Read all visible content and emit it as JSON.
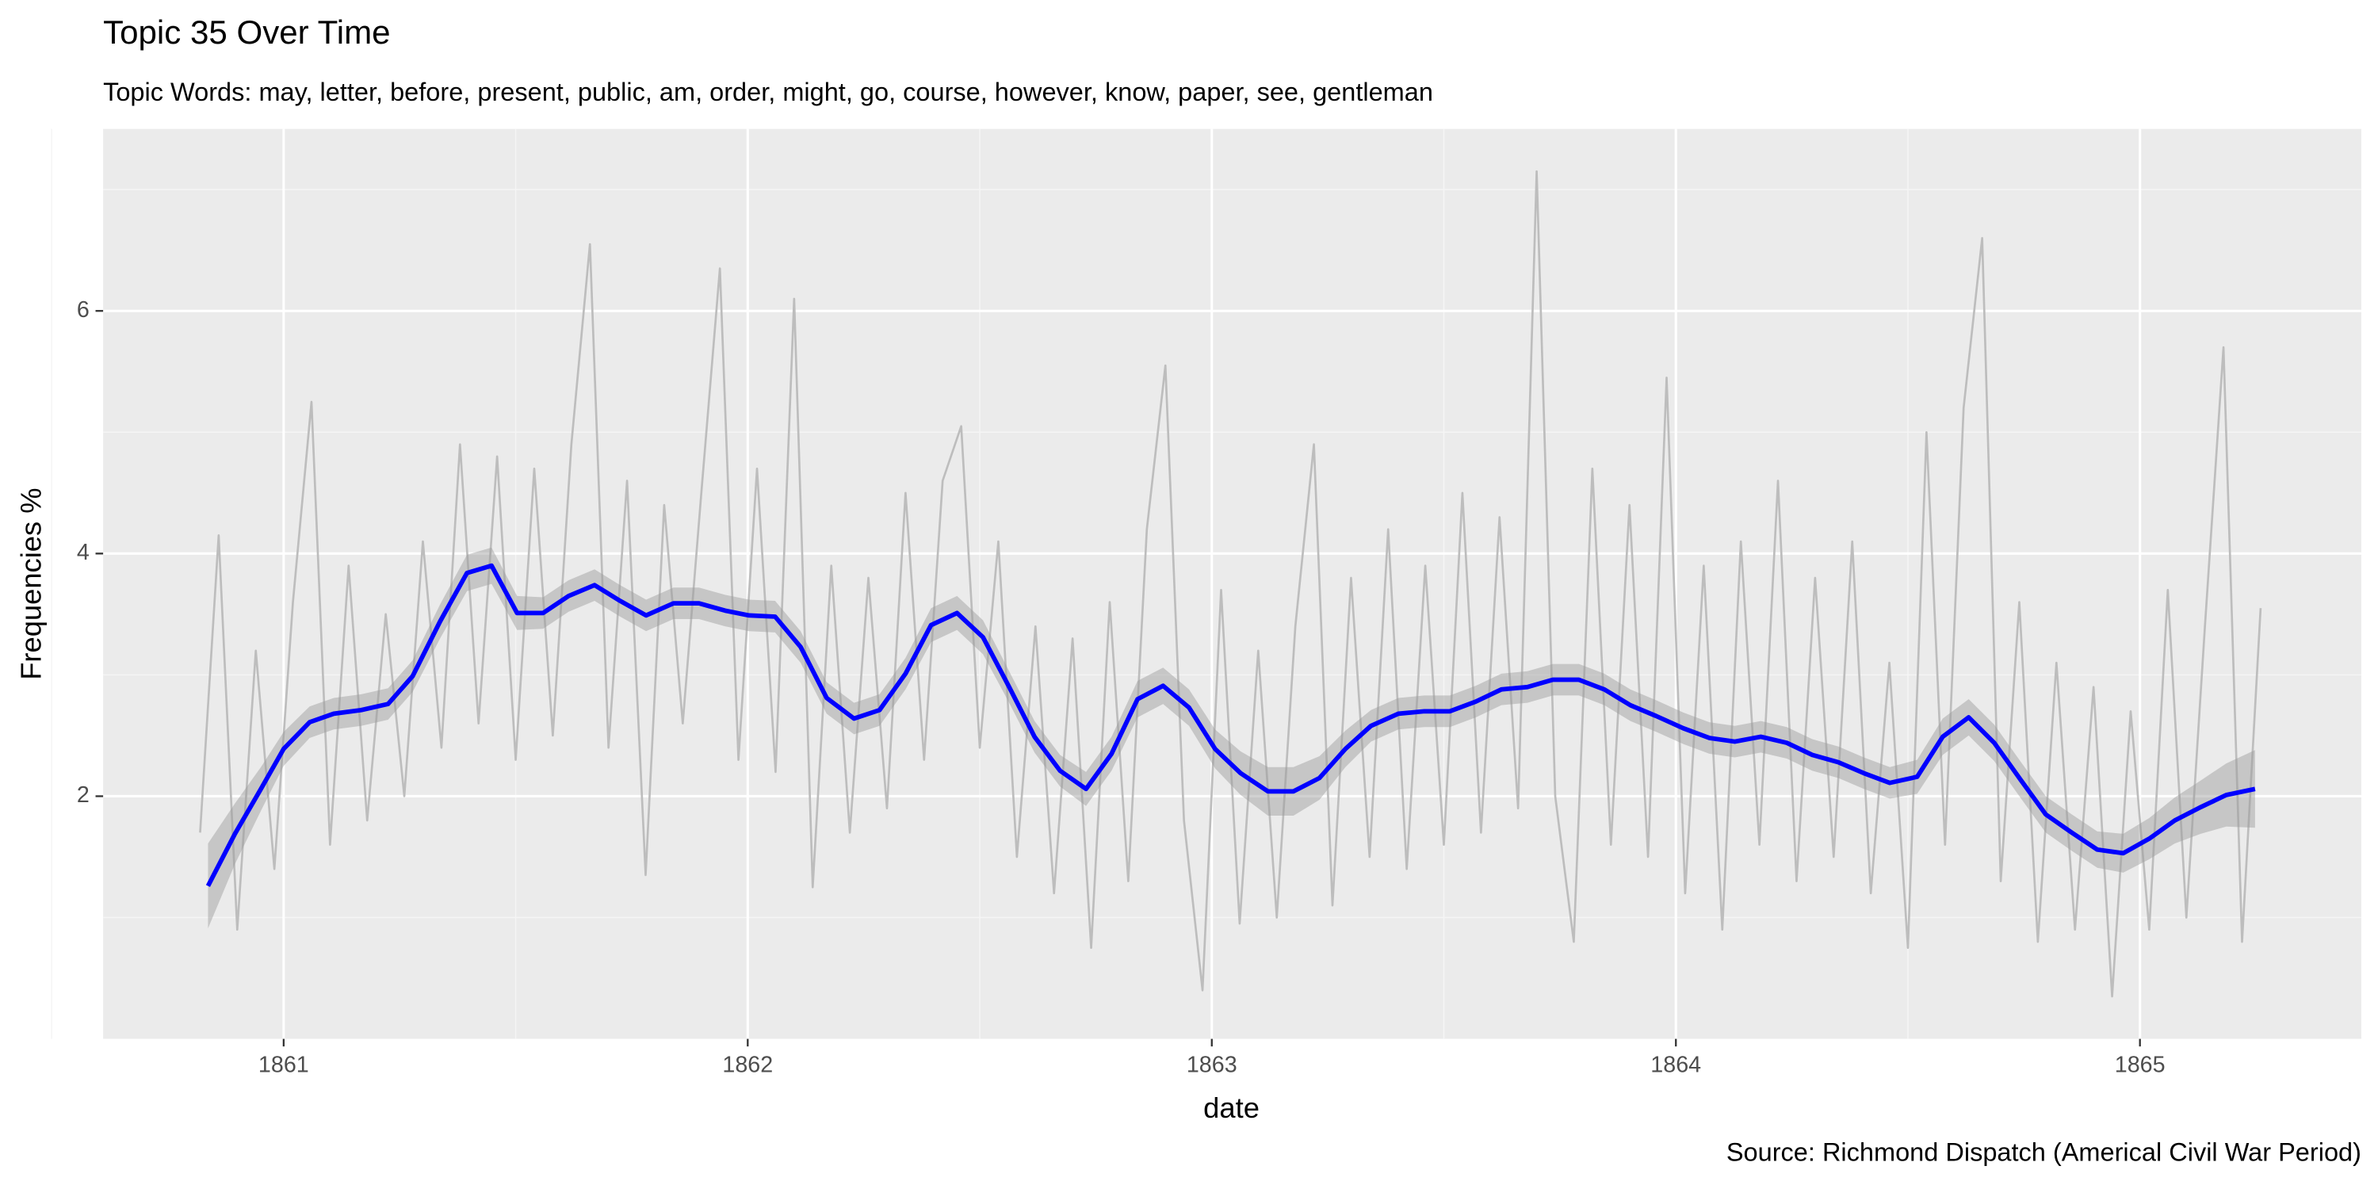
{
  "chart_data": {
    "type": "line",
    "title": "Topic 35 Over Time",
    "subtitle": "Topic Words: may, letter, before, present, public, am, order, might, go, course, however, know, paper, see, gentleman",
    "caption": "Source: Richmond Dispatch (Americal Civil War Period)",
    "x_label": "date",
    "y_label": "Frequencies %",
    "xlim": [
      1860.611,
      1865.477
    ],
    "xticks": [
      1861,
      1862,
      1863,
      1864,
      1865
    ],
    "x_minor_grid": [
      1860.5,
      1861.5,
      1862.5,
      1863.5,
      1864.5
    ],
    "ylim": [
      0,
      7.5
    ],
    "yticks": [
      2,
      4,
      6
    ],
    "y_minor_grid": [
      1,
      3,
      5,
      7
    ],
    "grid": true,
    "series": [
      {
        "color": "#bdbdbd",
        "x": [
          1860.82,
          1860.86,
          1860.9,
          1860.94,
          1860.98,
          1861.02,
          1861.06,
          1861.1,
          1861.14,
          1861.18,
          1861.22,
          1861.26,
          1861.3,
          1861.34,
          1861.38,
          1861.42,
          1861.46,
          1861.5,
          1861.54,
          1861.58,
          1861.62,
          1861.66,
          1861.7,
          1861.74,
          1861.78,
          1861.82,
          1861.86,
          1861.9,
          1861.94,
          1861.98,
          1862.02,
          1862.06,
          1862.1,
          1862.14,
          1862.18,
          1862.22,
          1862.26,
          1862.3,
          1862.34,
          1862.38,
          1862.42,
          1862.46,
          1862.5,
          1862.54,
          1862.58,
          1862.62,
          1862.66,
          1862.7,
          1862.74,
          1862.78,
          1862.82,
          1862.86,
          1862.9,
          1862.94,
          1862.98,
          1863.02,
          1863.06,
          1863.1,
          1863.14,
          1863.18,
          1863.22,
          1863.26,
          1863.3,
          1863.34,
          1863.38,
          1863.42,
          1863.46,
          1863.5,
          1863.54,
          1863.58,
          1863.62,
          1863.66,
          1863.7,
          1863.74,
          1863.78,
          1863.82,
          1863.86,
          1863.9,
          1863.94,
          1863.98,
          1864.02,
          1864.06,
          1864.1,
          1864.14,
          1864.18,
          1864.22,
          1864.26,
          1864.3,
          1864.34,
          1864.38,
          1864.42,
          1864.46,
          1864.5,
          1864.54,
          1864.58,
          1864.62,
          1864.66,
          1864.7,
          1864.74,
          1864.78,
          1864.82,
          1864.86,
          1864.9,
          1864.94,
          1864.98,
          1865.02,
          1865.06,
          1865.1,
          1865.14,
          1865.18,
          1865.22,
          1865.26
        ],
        "values": [
          1.7,
          4.15,
          0.9,
          3.2,
          1.4,
          3.6,
          5.25,
          1.6,
          3.9,
          1.8,
          3.5,
          2.0,
          4.1,
          2.4,
          4.9,
          2.6,
          4.8,
          2.3,
          4.7,
          2.5,
          4.9,
          6.55,
          2.4,
          4.6,
          1.35,
          4.4,
          2.6,
          4.5,
          6.35,
          2.3,
          4.7,
          2.2,
          6.1,
          1.25,
          3.9,
          1.7,
          3.8,
          1.9,
          4.5,
          2.3,
          4.6,
          5.05,
          2.4,
          4.1,
          1.5,
          3.4,
          1.2,
          3.3,
          0.75,
          3.6,
          1.3,
          4.2,
          5.55,
          1.8,
          0.4,
          3.7,
          0.95,
          3.2,
          1.0,
          3.4,
          4.9,
          1.1,
          3.8,
          1.5,
          4.2,
          1.4,
          3.9,
          1.6,
          4.5,
          1.7,
          4.3,
          1.9,
          7.15,
          2.0,
          0.8,
          4.7,
          1.6,
          4.4,
          1.5,
          5.45,
          1.2,
          3.9,
          0.9,
          4.1,
          1.6,
          4.6,
          1.3,
          3.8,
          1.5,
          4.1,
          1.2,
          3.1,
          0.75,
          5.0,
          1.6,
          5.2,
          6.6,
          1.3,
          3.6,
          0.8,
          3.1,
          0.9,
          2.9,
          0.35,
          2.7,
          0.9,
          3.7,
          1.0,
          3.4,
          5.7,
          0.8,
          3.55
        ]
      },
      {
        "color": "#0000ff",
        "band_color": "#999999",
        "x": [
          1860.837,
          1860.895,
          1860.951,
          1861.0,
          1861.056,
          1861.108,
          1861.167,
          1861.225,
          1861.278,
          1861.337,
          1861.395,
          1861.448,
          1861.503,
          1861.559,
          1861.614,
          1861.67,
          1861.725,
          1861.781,
          1861.84,
          1861.895,
          1861.951,
          1862.003,
          1862.059,
          1862.114,
          1862.17,
          1862.229,
          1862.284,
          1862.34,
          1862.395,
          1862.451,
          1862.507,
          1862.562,
          1862.618,
          1862.673,
          1862.729,
          1862.784,
          1862.84,
          1862.895,
          1862.951,
          1863.007,
          1863.062,
          1863.121,
          1863.176,
          1863.232,
          1863.288,
          1863.343,
          1863.402,
          1863.458,
          1863.513,
          1863.569,
          1863.624,
          1863.68,
          1863.735,
          1863.791,
          1863.846,
          1863.902,
          1863.958,
          1864.016,
          1864.072,
          1864.127,
          1864.183,
          1864.239,
          1864.294,
          1864.35,
          1864.405,
          1864.461,
          1864.52,
          1864.575,
          1864.631,
          1864.686,
          1864.742,
          1864.797,
          1864.853,
          1864.908,
          1864.964,
          1865.02,
          1865.075,
          1865.131,
          1865.186,
          1865.248
        ],
        "values": [
          1.26,
          1.69,
          2.06,
          2.39,
          2.61,
          2.68,
          2.71,
          2.76,
          2.99,
          3.44,
          3.84,
          3.9,
          3.51,
          3.51,
          3.65,
          3.74,
          3.61,
          3.49,
          3.59,
          3.59,
          3.53,
          3.49,
          3.48,
          3.23,
          2.81,
          2.64,
          2.71,
          3.01,
          3.41,
          3.51,
          3.31,
          2.91,
          2.49,
          2.21,
          2.06,
          2.35,
          2.8,
          2.91,
          2.73,
          2.39,
          2.19,
          2.04,
          2.04,
          2.15,
          2.39,
          2.58,
          2.68,
          2.7,
          2.7,
          2.78,
          2.88,
          2.9,
          2.96,
          2.96,
          2.88,
          2.75,
          2.66,
          2.56,
          2.48,
          2.45,
          2.49,
          2.44,
          2.34,
          2.28,
          2.19,
          2.11,
          2.16,
          2.49,
          2.65,
          2.44,
          2.14,
          1.85,
          1.7,
          1.56,
          1.53,
          1.65,
          1.8,
          1.91,
          2.01,
          2.06
        ],
        "errors": [
          0.35,
          0.25,
          0.18,
          0.14,
          0.13,
          0.13,
          0.13,
          0.13,
          0.13,
          0.14,
          0.15,
          0.15,
          0.14,
          0.13,
          0.13,
          0.13,
          0.13,
          0.13,
          0.13,
          0.13,
          0.13,
          0.13,
          0.13,
          0.13,
          0.13,
          0.13,
          0.13,
          0.13,
          0.14,
          0.14,
          0.14,
          0.13,
          0.13,
          0.13,
          0.14,
          0.14,
          0.15,
          0.15,
          0.15,
          0.16,
          0.18,
          0.2,
          0.2,
          0.18,
          0.15,
          0.13,
          0.13,
          0.13,
          0.13,
          0.13,
          0.13,
          0.13,
          0.13,
          0.13,
          0.13,
          0.13,
          0.13,
          0.13,
          0.13,
          0.13,
          0.13,
          0.13,
          0.13,
          0.13,
          0.13,
          0.13,
          0.14,
          0.15,
          0.15,
          0.15,
          0.15,
          0.15,
          0.15,
          0.15,
          0.16,
          0.17,
          0.19,
          0.22,
          0.26,
          0.32
        ]
      }
    ]
  }
}
